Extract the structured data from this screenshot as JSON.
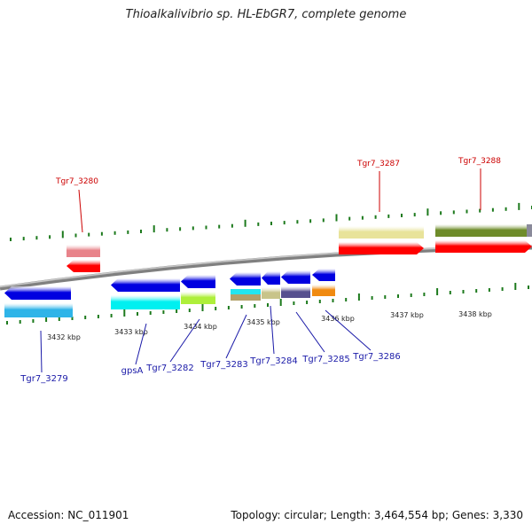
{
  "title": "Thioalkalivibrio sp. HL-EbGR7, complete genome",
  "footer": {
    "accession": "Accession: NC_011901",
    "topology": "Topology: circular; Length: 3,464,554 bp; Genes: 3,330"
  },
  "colors": {
    "label_top": "#cc0000",
    "label_bottom": "#1a1aa8",
    "tick": "#1d7a1d",
    "backbone": "#808080"
  },
  "scale_labels": [
    "3432 kbp",
    "3433 kbp",
    "3434 kbp",
    "3435 kbp",
    "3436 kbp",
    "3437 kbp",
    "3438 kbp"
  ],
  "genes_top": [
    {
      "name": "Tgr7_3280",
      "strand": "reverse",
      "class_color": "#e8838a",
      "gene_color": "#ff0000"
    },
    {
      "name": "Tgr7_3287",
      "strand": "forward",
      "class_color": "#e8e39a",
      "gene_color": "#ff0000"
    },
    {
      "name": "Tgr7_3288",
      "strand": "forward",
      "class_color": "#6e8c2a",
      "gene_color": "#ff0000"
    }
  ],
  "genes_bottom": [
    {
      "name": "Tgr7_3279",
      "strand": "reverse",
      "class_color": "#2fb4e8",
      "gene_color": "#0000e0"
    },
    {
      "name": "gpsA",
      "strand": "reverse",
      "class_color": "#00f0f0",
      "gene_color": "#0000e0"
    },
    {
      "name": "Tgr7_3282",
      "strand": "reverse",
      "class_color": "#aeef3a",
      "gene_color": "#0000e0"
    },
    {
      "name": "Tgr7_3283",
      "strand": "reverse",
      "class_color": "#b2a06a",
      "gene_color": "#0000e0"
    },
    {
      "name": "Tgr7_3284",
      "strand": "reverse",
      "class_color": "#c8c48a",
      "gene_color": "#0000e0"
    },
    {
      "name": "Tgr7_3285",
      "strand": "reverse",
      "class_color": "#57508f",
      "gene_color": "#0000e0"
    },
    {
      "name": "Tgr7_3286",
      "strand": "reverse",
      "class_color": "#f08a10",
      "gene_color": "#0000e0"
    }
  ]
}
